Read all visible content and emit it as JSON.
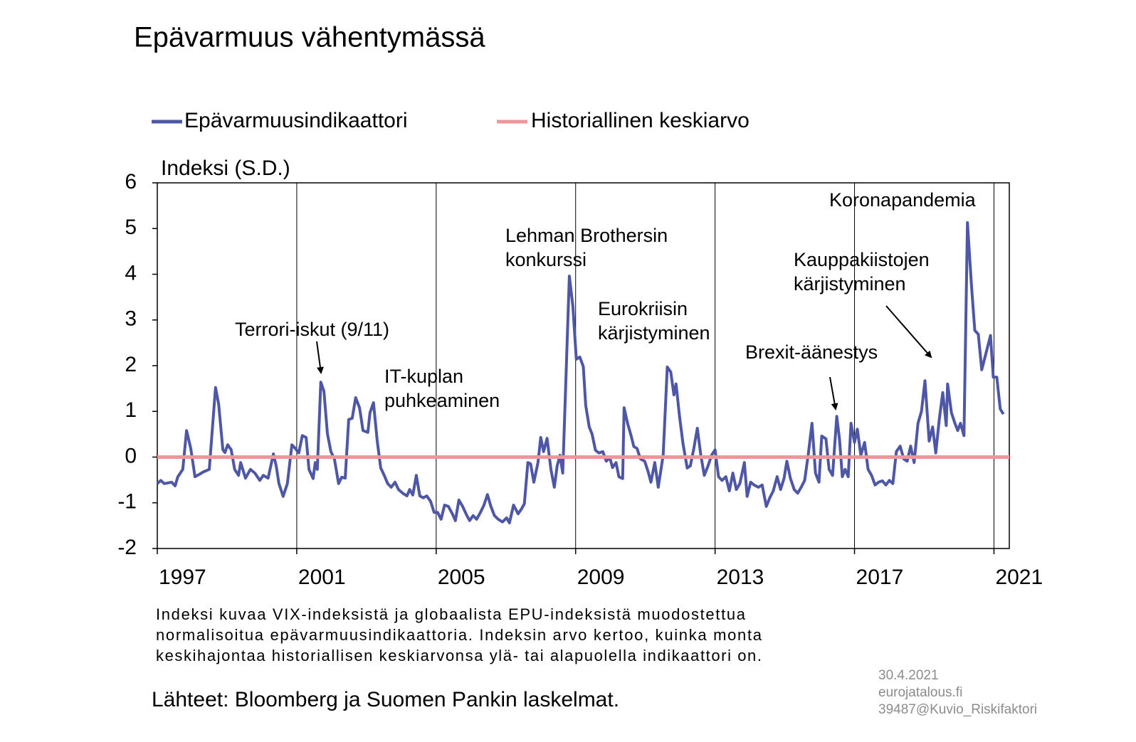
{
  "chart_data": {
    "type": "line",
    "title": "Epävarmuus vähentymässä",
    "y_label": "Indeksi (S.D.)",
    "xlim": [
      1997,
      2021.44
    ],
    "xticks": [
      1997,
      2001,
      2005,
      2009,
      2013,
      2017,
      2021
    ],
    "ylim": [
      -2,
      6
    ],
    "yticks": [
      -2,
      -1,
      0,
      1,
      2,
      3,
      4,
      5,
      6
    ],
    "grid": true,
    "legend": "top",
    "series": [
      {
        "name": "Epävarmuusindikaattori",
        "color": "#4e57a6",
        "x": [
          1997.0,
          1997.1,
          1997.2,
          1997.41,
          1997.51,
          1997.59,
          1997.73,
          1997.84,
          1997.96,
          1998.08,
          1998.2,
          1998.33,
          1998.49,
          1998.67,
          1998.76,
          1998.88,
          1998.94,
          1999.02,
          1999.12,
          1999.22,
          1999.33,
          1999.39,
          1999.53,
          1999.67,
          1999.8,
          1999.94,
          2000.04,
          2000.18,
          2000.33,
          2000.41,
          2000.49,
          2000.61,
          2000.73,
          2000.86,
          2000.96,
          2001.06,
          2001.16,
          2001.27,
          2001.35,
          2001.47,
          2001.53,
          2001.59,
          2001.69,
          2001.78,
          2001.88,
          2001.98,
          2002.08,
          2002.2,
          2002.29,
          2002.39,
          2002.49,
          2002.59,
          2002.69,
          2002.8,
          2002.9,
          2003.04,
          2003.1,
          2003.2,
          2003.31,
          2003.41,
          2003.51,
          2003.61,
          2003.71,
          2003.82,
          2003.92,
          2004.04,
          2004.16,
          2004.24,
          2004.33,
          2004.43,
          2004.53,
          2004.63,
          2004.73,
          2004.84,
          2004.94,
          2005.04,
          2005.14,
          2005.24,
          2005.35,
          2005.47,
          2005.55,
          2005.65,
          2005.76,
          2005.88,
          2005.96,
          2006.06,
          2006.16,
          2006.27,
          2006.37,
          2006.47,
          2006.57,
          2006.67,
          2006.78,
          2006.9,
          2007.02,
          2007.1,
          2007.22,
          2007.35,
          2007.45,
          2007.53,
          2007.63,
          2007.71,
          2007.8,
          2007.92,
          2008.0,
          2008.08,
          2008.18,
          2008.29,
          2008.39,
          2008.47,
          2008.55,
          2008.63,
          2008.71,
          2008.82,
          2008.92,
          2009.02,
          2009.12,
          2009.22,
          2009.29,
          2009.39,
          2009.47,
          2009.57,
          2009.67,
          2009.78,
          2009.88,
          2009.98,
          2010.06,
          2010.16,
          2010.24,
          2010.35,
          2010.39,
          2010.49,
          2010.59,
          2010.67,
          2010.76,
          2010.86,
          2010.98,
          2011.08,
          2011.16,
          2011.27,
          2011.37,
          2011.51,
          2011.63,
          2011.73,
          2011.82,
          2011.88,
          2011.98,
          2012.08,
          2012.2,
          2012.29,
          2012.39,
          2012.49,
          2012.59,
          2012.69,
          2012.8,
          2012.9,
          2013.0,
          2013.1,
          2013.2,
          2013.31,
          2013.41,
          2013.51,
          2013.61,
          2013.71,
          2013.84,
          2013.92,
          2014.02,
          2014.12,
          2014.24,
          2014.35,
          2014.47,
          2014.57,
          2014.67,
          2014.78,
          2014.88,
          2014.98,
          2015.06,
          2015.16,
          2015.27,
          2015.37,
          2015.47,
          2015.57,
          2015.67,
          2015.78,
          2015.88,
          2015.98,
          2016.06,
          2016.18,
          2016.27,
          2016.37,
          2016.49,
          2016.57,
          2016.65,
          2016.73,
          2016.82,
          2016.9,
          2017.0,
          2017.08,
          2017.18,
          2017.29,
          2017.39,
          2017.49,
          2017.59,
          2017.69,
          2017.8,
          2017.9,
          2018.0,
          2018.1,
          2018.2,
          2018.31,
          2018.41,
          2018.51,
          2018.61,
          2018.71,
          2018.82,
          2018.92,
          2019.02,
          2019.14,
          2019.24,
          2019.33,
          2019.43,
          2019.53,
          2019.63,
          2019.67,
          2019.78,
          2019.88,
          2019.96,
          2020.04,
          2020.14,
          2020.24,
          2020.35,
          2020.45,
          2020.55,
          2020.65,
          2020.78,
          2020.9,
          2020.98,
          2021.08,
          2021.18,
          2021.27
        ],
        "values": [
          -0.58,
          -0.51,
          -0.58,
          -0.55,
          -0.63,
          -0.43,
          -0.27,
          0.58,
          0.19,
          -0.43,
          -0.38,
          -0.32,
          -0.27,
          1.52,
          1.16,
          0.16,
          0.1,
          0.27,
          0.16,
          -0.27,
          -0.4,
          -0.12,
          -0.46,
          -0.27,
          -0.35,
          -0.51,
          -0.4,
          -0.46,
          0.07,
          -0.19,
          -0.58,
          -0.86,
          -0.58,
          0.27,
          0.19,
          0.09,
          0.47,
          0.43,
          -0.27,
          -0.47,
          -0.12,
          -0.27,
          1.64,
          1.44,
          0.51,
          0.12,
          -0.04,
          -0.58,
          -0.44,
          -0.46,
          0.82,
          0.85,
          1.3,
          1.08,
          0.58,
          0.54,
          0.97,
          1.19,
          0.35,
          -0.24,
          -0.4,
          -0.58,
          -0.66,
          -0.55,
          -0.71,
          -0.79,
          -0.85,
          -0.71,
          -0.83,
          -0.4,
          -0.85,
          -0.89,
          -0.85,
          -0.97,
          -1.21,
          -1.21,
          -1.36,
          -1.05,
          -1.08,
          -1.25,
          -1.39,
          -0.94,
          -1.08,
          -1.28,
          -1.39,
          -1.28,
          -1.36,
          -1.21,
          -1.05,
          -0.82,
          -1.08,
          -1.28,
          -1.36,
          -1.42,
          -1.33,
          -1.44,
          -1.05,
          -1.24,
          -1.13,
          -1.02,
          -0.12,
          -0.15,
          -0.55,
          -0.12,
          0.43,
          0.12,
          0.41,
          -0.27,
          -0.66,
          -0.19,
          0.04,
          -0.35,
          1.44,
          3.96,
          3.31,
          2.14,
          2.19,
          1.98,
          1.13,
          0.66,
          0.51,
          0.15,
          0.09,
          0.12,
          -0.09,
          -0.01,
          -0.23,
          -0.12,
          -0.43,
          -0.47,
          1.08,
          0.74,
          0.47,
          0.23,
          0.19,
          -0.04,
          -0.09,
          -0.32,
          -0.55,
          -0.12,
          -0.66,
          0.04,
          1.97,
          1.86,
          1.36,
          1.6,
          0.89,
          0.29,
          -0.24,
          -0.19,
          0.19,
          0.63,
          0.04,
          -0.4,
          -0.19,
          0.04,
          0.16,
          -0.43,
          -0.51,
          -0.43,
          -0.74,
          -0.35,
          -0.71,
          -0.58,
          -0.12,
          -0.86,
          -0.55,
          -0.61,
          -0.66,
          -0.61,
          -1.08,
          -0.89,
          -0.74,
          -0.43,
          -0.71,
          -0.46,
          -0.09,
          -0.46,
          -0.71,
          -0.79,
          -0.66,
          -0.51,
          0.04,
          0.74,
          -0.35,
          -0.55,
          0.46,
          0.4,
          -0.27,
          -0.4,
          0.89,
          0.38,
          -0.43,
          -0.27,
          -0.43,
          0.74,
          0.32,
          0.61,
          0.04,
          0.32,
          -0.27,
          -0.4,
          -0.61,
          -0.55,
          -0.52,
          -0.61,
          -0.51,
          -0.58,
          0.12,
          0.24,
          -0.04,
          -0.09,
          0.24,
          -0.12,
          0.74,
          1.0,
          1.67,
          0.35,
          0.66,
          0.09,
          0.82,
          1.41,
          0.69,
          1.6,
          0.97,
          0.74,
          0.58,
          0.74,
          0.47,
          5.13,
          3.81,
          2.77,
          2.69,
          1.91,
          2.3,
          2.66,
          1.75,
          1.75,
          1.05,
          0.94
        ]
      },
      {
        "name": "Historiallinen keskiarvo",
        "color": "#f0959b",
        "x": [
          1997,
          2021.44
        ],
        "values": [
          0,
          0
        ]
      }
    ],
    "annotations": [
      {
        "lines": [
          "Terrori-iskut (9/11)"
        ]
      },
      {
        "lines": [
          "IT-kuplan",
          "puhkeaminen"
        ]
      },
      {
        "lines": [
          "Lehman Brothersin",
          "konkurssi"
        ]
      },
      {
        "lines": [
          "Eurokriisin",
          "kärjistyminen"
        ]
      },
      {
        "lines": [
          "Brexit-äänestys"
        ]
      },
      {
        "lines": [
          "Kauppakiistojen",
          "kärjistyminen"
        ]
      },
      {
        "lines": [
          "Koronapandemia"
        ]
      }
    ]
  },
  "note": [
    "Indeksi kuvaa VIX-indeksistä ja globaalista EPU-indeksistä muodostettua",
    "normalisoitua epävarmuusindikaattoria. Indeksin arvo kertoo, kuinka monta",
    "keskihajontaa historiallisen keskiarvonsa ylä- tai alapuolella indikaattori on."
  ],
  "note_last": "keskihajontaa historiallisen keskiarvonsa ylä- tai alapuolella indikaattori on.",
  "source": "Lähteet: Bloomberg ja Suomen Pankin laskelmat.",
  "stamp": [
    "30.4.2021",
    "eurojatalous.fi",
    "39487@Kuvio_Riskifaktori"
  ]
}
